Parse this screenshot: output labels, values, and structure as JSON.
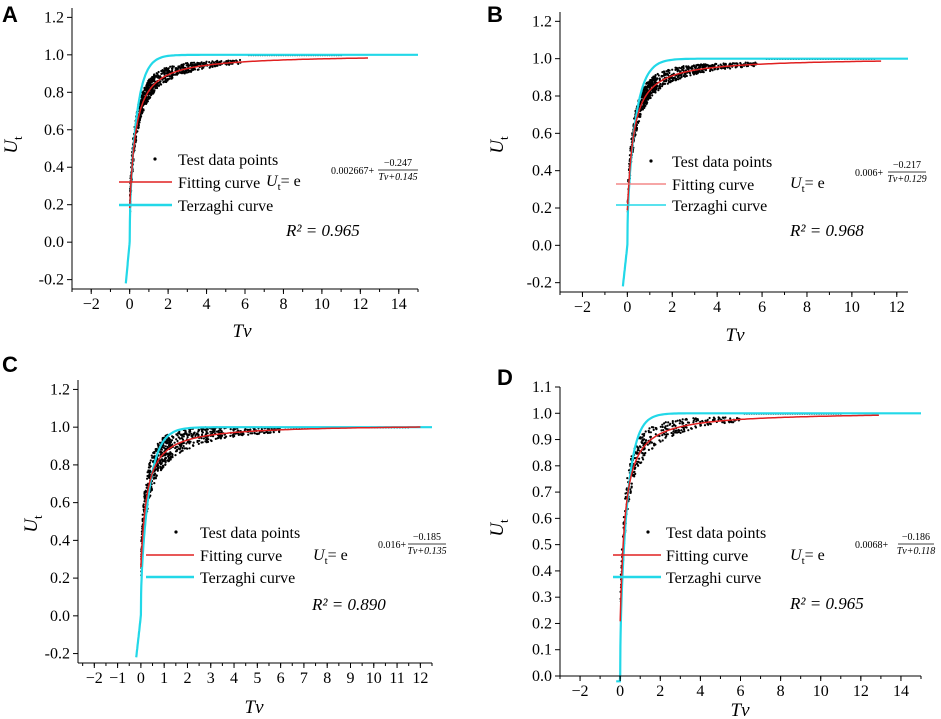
{
  "figure": {
    "panels": [
      "A",
      "B",
      "C",
      "D"
    ]
  },
  "colors": {
    "test_points": "#000000",
    "fitting_curve": "#e02020",
    "terzaghi_curve": "#22d8e8",
    "axis": "#000000"
  },
  "chart_data": [
    {
      "panel": "A",
      "type": "scatter",
      "xlabel": "Tv",
      "ylabel": "Ut",
      "xlim": [
        -3,
        15
      ],
      "ylim": [
        -0.25,
        1.25
      ],
      "xticks": [
        -2,
        0,
        2,
        4,
        6,
        8,
        10,
        12,
        14
      ],
      "yticks": [
        -0.2,
        0.0,
        0.2,
        0.4,
        0.6,
        0.8,
        1.0,
        1.2
      ],
      "ytick_labels": [
        "-0.2",
        "0.0",
        "0.2",
        "0.4",
        "0.6",
        "0.8",
        "1.0",
        "1.2"
      ],
      "fit": {
        "a": 0.002667,
        "b": -0.247,
        "c": 0.145
      },
      "fit_xmax": 12.4,
      "scatter_xmax": 5.8,
      "equation": {
        "lhs": "U",
        "lhs_sub": "t",
        "eq": "= e",
        "exp_const": "0.002667+",
        "frac_num": "−0.247",
        "frac_den": "Tv+0.145"
      },
      "r2_label": "R² = 0.965",
      "legend": [
        "Test data points",
        "Fitting curve",
        "Terzaghi curve"
      ],
      "series": [
        {
          "name": "Test data points",
          "kind": "scatter",
          "n": 700
        },
        {
          "name": "Fitting curve",
          "kind": "line",
          "formula": "Ut = e^(0.002667 + (-0.247)/(Tv+0.145))"
        },
        {
          "name": "Terzaghi curve",
          "kind": "line"
        }
      ]
    },
    {
      "panel": "B",
      "type": "scatter",
      "xlabel": "Tv",
      "ylabel": "Ut",
      "xlim": [
        -3,
        12.5
      ],
      "ylim": [
        -0.25,
        1.25
      ],
      "xticks": [
        -2,
        0,
        2,
        4,
        6,
        8,
        10,
        12
      ],
      "yticks": [
        -0.2,
        0.0,
        0.2,
        0.4,
        0.6,
        0.8,
        1.0,
        1.2
      ],
      "ytick_labels": [
        "-0.2",
        "0.0",
        "0.2",
        "0.4",
        "0.6",
        "0.8",
        "1.0",
        "1.2"
      ],
      "fit": {
        "a": 0.006,
        "b": -0.217,
        "c": 0.129
      },
      "fit_xmax": 11.3,
      "scatter_xmax": 5.8,
      "equation": {
        "lhs": "U",
        "lhs_sub": "t",
        "eq": "= e",
        "exp_const": "0.006+",
        "frac_num": "−0.217",
        "frac_den": "Tv+0.129"
      },
      "r2_label": "R² = 0.968",
      "legend": [
        "Test data points",
        "Fitting curve",
        "Terzaghi curve"
      ],
      "series": [
        {
          "name": "Test data points",
          "kind": "scatter",
          "n": 700
        },
        {
          "name": "Fitting curve",
          "kind": "line",
          "formula": "Ut = e^(0.006 + (-0.217)/(Tv+0.129))"
        },
        {
          "name": "Terzaghi curve",
          "kind": "line"
        }
      ]
    },
    {
      "panel": "C",
      "type": "scatter",
      "xlabel": "Tv",
      "ylabel": "Ut",
      "xlim": [
        -2.7,
        12.5
      ],
      "ylim": [
        -0.25,
        1.25
      ],
      "xticks": [
        -2,
        -1,
        0,
        1,
        2,
        3,
        4,
        5,
        6,
        7,
        8,
        9,
        10,
        11,
        12
      ],
      "yticks": [
        -0.2,
        0.0,
        0.2,
        0.4,
        0.6,
        0.8,
        1.0,
        1.2
      ],
      "ytick_labels": [
        "-0.2",
        "0.0",
        "0.2",
        "0.4",
        "0.6",
        "0.8",
        "1.0",
        "1.2"
      ],
      "fit": {
        "a": 0.016,
        "b": -0.185,
        "c": 0.135
      },
      "fit_xmax": 12.0,
      "scatter_xmax": 6.0,
      "equation": {
        "lhs": "U",
        "lhs_sub": "t",
        "eq": "= e",
        "exp_const": "0.016+",
        "frac_num": "−0.185",
        "frac_den": "Tv+0.135"
      },
      "r2_label": "R² = 0.890",
      "legend": [
        "Test data points",
        "Fitting curve",
        "Terzaghi curve"
      ],
      "series": [
        {
          "name": "Test data points",
          "kind": "scatter",
          "n": 700
        },
        {
          "name": "Fitting curve",
          "kind": "line",
          "formula": "Ut = e^(0.016 + (-0.185)/(Tv+0.135))"
        },
        {
          "name": "Terzaghi curve",
          "kind": "line"
        }
      ]
    },
    {
      "panel": "D",
      "type": "scatter",
      "xlabel": "Tv",
      "ylabel": "Ut",
      "xlim": [
        -3,
        15
      ],
      "ylim": [
        0.0,
        1.1
      ],
      "xticks": [
        -2,
        0,
        2,
        4,
        6,
        8,
        10,
        12,
        14
      ],
      "yticks": [
        0.0,
        0.1,
        0.2,
        0.3,
        0.4,
        0.5,
        0.6,
        0.7,
        0.8,
        0.9,
        1.0,
        1.1
      ],
      "ytick_labels": [
        "0.0",
        "0.1",
        "0.2",
        "0.3",
        "0.4",
        "0.5",
        "0.6",
        "0.7",
        "0.8",
        "0.9",
        "1.0",
        "1.1"
      ],
      "fit": {
        "a": 0.0068,
        "b": -0.186,
        "c": 0.118
      },
      "fit_xmax": 12.9,
      "scatter_xmax": 6.0,
      "equation": {
        "lhs": "U",
        "lhs_sub": "t",
        "eq": "= e",
        "exp_const": "0.0068+",
        "frac_num": "−0.186",
        "frac_den": "Tv+0.118"
      },
      "r2_label": "R² = 0.965",
      "legend": [
        "Test data points",
        "Fitting curve",
        "Terzaghi curve"
      ],
      "series": [
        {
          "name": "Test data points",
          "kind": "scatter",
          "n": 350
        },
        {
          "name": "Fitting curve",
          "kind": "line",
          "formula": "Ut = e^(0.0068 + (-0.186)/(Tv+0.118))"
        },
        {
          "name": "Terzaghi curve",
          "kind": "line"
        }
      ]
    }
  ]
}
